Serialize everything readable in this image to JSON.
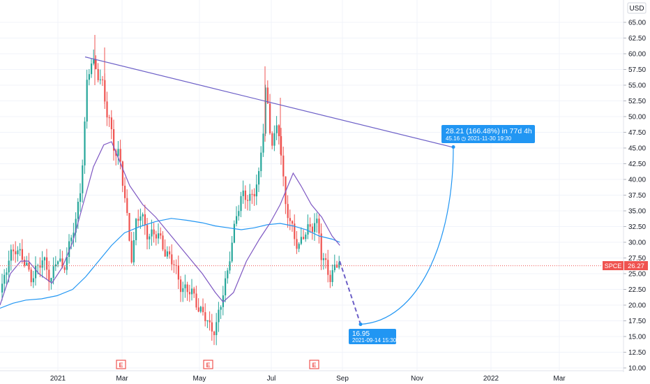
{
  "chart_data": {
    "type": "candlestick",
    "symbol": "SPCE",
    "currency": "USD",
    "last_price": "26.27",
    "price_axis": {
      "ticks": [
        "65.00",
        "62.50",
        "60.00",
        "57.50",
        "55.00",
        "52.50",
        "50.00",
        "47.50",
        "45.00",
        "42.50",
        "40.00",
        "37.50",
        "35.00",
        "32.50",
        "30.00",
        "27.50",
        "25.00",
        "22.50",
        "20.00",
        "17.50",
        "15.00",
        "12.50",
        "10.00"
      ],
      "range": [
        9.2,
        66.5
      ]
    },
    "time_axis": {
      "labels": [
        "2021",
        "Mar",
        "May",
        "Jul",
        "Sep",
        "Nov",
        "2022",
        "Mar"
      ]
    },
    "earnings_markers": [
      "E",
      "E",
      "E"
    ],
    "moving_average_short": [
      [
        0,
        20
      ],
      [
        8,
        25
      ],
      [
        16,
        27
      ],
      [
        22,
        27
      ],
      [
        30,
        25
      ],
      [
        40,
        23.5
      ],
      [
        48,
        26
      ],
      [
        56,
        30
      ],
      [
        64,
        36
      ],
      [
        72,
        42
      ],
      [
        80,
        45.5
      ],
      [
        86,
        46
      ],
      [
        92,
        43
      ],
      [
        100,
        39
      ],
      [
        110,
        36
      ],
      [
        120,
        34
      ],
      [
        132,
        31
      ],
      [
        144,
        28
      ],
      [
        156,
        25
      ],
      [
        166,
        22
      ],
      [
        172,
        20.5
      ],
      [
        180,
        22
      ],
      [
        190,
        27
      ],
      [
        200,
        30.5
      ],
      [
        208,
        33
      ],
      [
        216,
        36
      ],
      [
        222,
        39
      ],
      [
        226,
        41
      ],
      [
        232,
        39
      ],
      [
        240,
        36
      ],
      [
        248,
        34
      ],
      [
        256,
        31
      ],
      [
        262,
        29.5
      ]
    ],
    "moving_average_long": [
      [
        0,
        19.5
      ],
      [
        10,
        20.3
      ],
      [
        20,
        20.8
      ],
      [
        32,
        21
      ],
      [
        44,
        21.5
      ],
      [
        56,
        22.5
      ],
      [
        66,
        24.5
      ],
      [
        76,
        27
      ],
      [
        86,
        29.5
      ],
      [
        96,
        31.5
      ],
      [
        108,
        32.5
      ],
      [
        120,
        33.3
      ],
      [
        132,
        33.8
      ],
      [
        144,
        33.5
      ],
      [
        156,
        33.1
      ],
      [
        166,
        32.6
      ],
      [
        176,
        32.3
      ],
      [
        186,
        32
      ],
      [
        196,
        32.3
      ],
      [
        206,
        32.8
      ],
      [
        216,
        33
      ],
      [
        226,
        32.6
      ],
      [
        236,
        32
      ],
      [
        246,
        31
      ],
      [
        256,
        30.5
      ],
      [
        262,
        30
      ]
    ],
    "trend_line": {
      "from": [
        122,
        59.5
      ],
      "to": [
        650,
        45.1
      ]
    },
    "projection": {
      "dashed": {
        "from": [
          487,
          27
        ],
        "to": [
          517,
          16.95
        ]
      },
      "curve": {
        "from": [
          517,
          16.95
        ],
        "c1": [
          600,
          17.5
        ],
        "c2": [
          650,
          30
        ],
        "to": [
          650,
          45.16
        ]
      }
    },
    "annotations": {
      "low_label": {
        "value": "16.95",
        "date": "2021-09-14 15:30"
      },
      "target_label": {
        "line1": "28.21 (166.48%) in 77d 4h",
        "line2": "45.16 ◷ 2021-11-30 19:30"
      }
    },
    "colors": {
      "up": "#26a69a",
      "down": "#ef5350",
      "short_ma": "#7e57c2",
      "long_ma": "#2196f3",
      "trend": "#6c5fc7",
      "label": "#2196f3",
      "price_line": "#ef5350"
    }
  }
}
